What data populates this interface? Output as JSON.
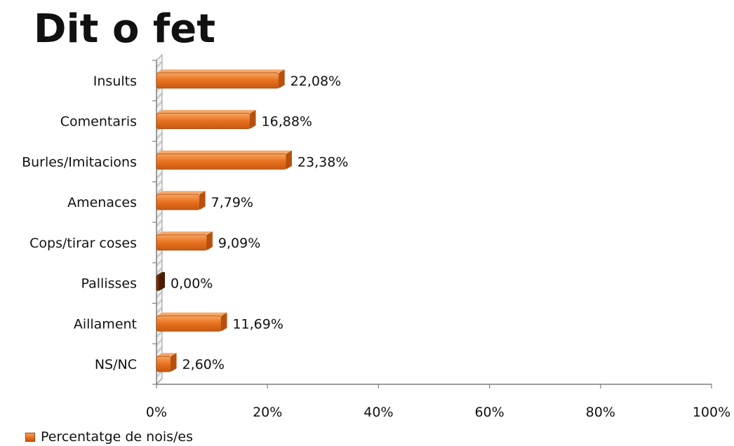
{
  "title": "Dit o fet",
  "chart_data": {
    "type": "bar",
    "orientation": "horizontal",
    "categories": [
      "Insults",
      "Comentaris",
      "Burles/Imitacions",
      "Amenaces",
      "Cops/tirar coses",
      "Pallisses",
      "Aillament",
      "NS/NC"
    ],
    "series": [
      {
        "name": "Percentatge de nois/es",
        "values": [
          22.08,
          16.88,
          23.38,
          7.79,
          9.09,
          0.0,
          11.69,
          2.6
        ],
        "labels": [
          "22,08%",
          "16,88%",
          "23,38%",
          "7,79%",
          "9,09%",
          "0,00%",
          "11,69%",
          "2,60%"
        ]
      }
    ],
    "xlim": [
      0,
      100
    ],
    "x_ticks": [
      "0%",
      "20%",
      "40%",
      "60%",
      "80%",
      "100%"
    ],
    "grid": false,
    "legend_position": "bottom-left",
    "colors": {
      "bar": "#e8701e",
      "bar_light": "#f6a05c",
      "bar_dark": "#b8500e",
      "zero_bar": "#7a3208"
    }
  }
}
